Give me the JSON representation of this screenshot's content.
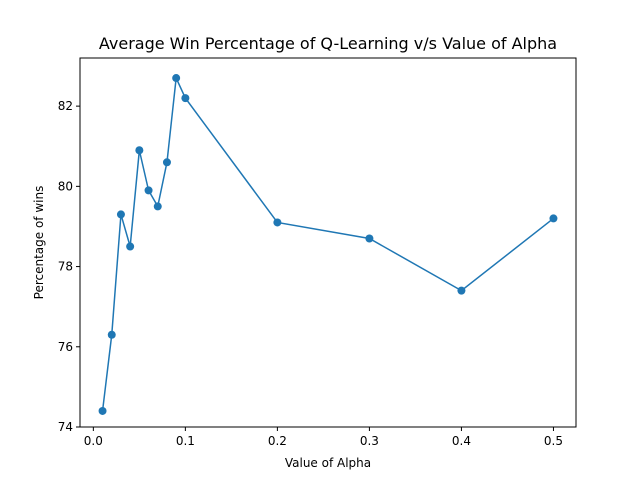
{
  "chart_data": {
    "type": "line",
    "title": "Average Win Percentage of Q-Learning v/s Value of Alpha",
    "xlabel": "Value of Alpha",
    "ylabel": "Percentage of wins",
    "xlim": [
      -0.0145,
      0.5245
    ],
    "ylim": [
      74.0,
      83.2
    ],
    "xticks": [
      0.0,
      0.1,
      0.2,
      0.3,
      0.4,
      0.5
    ],
    "xtick_labels": [
      "0.0",
      "0.1",
      "0.2",
      "0.3",
      "0.4",
      "0.5"
    ],
    "yticks": [
      74,
      76,
      78,
      80,
      82
    ],
    "ytick_labels": [
      "74",
      "76",
      "78",
      "80",
      "82"
    ],
    "grid": false,
    "series": [
      {
        "color": "#1f77b4",
        "marker": "circle",
        "x": [
          0.01,
          0.02,
          0.03,
          0.04,
          0.05,
          0.06,
          0.07,
          0.08,
          0.09,
          0.1,
          0.2,
          0.3,
          0.4,
          0.5
        ],
        "y": [
          74.4,
          76.3,
          79.3,
          78.5,
          80.9,
          79.9,
          79.5,
          80.6,
          82.7,
          82.2,
          79.1,
          78.7,
          77.4,
          79.2
        ]
      }
    ]
  }
}
